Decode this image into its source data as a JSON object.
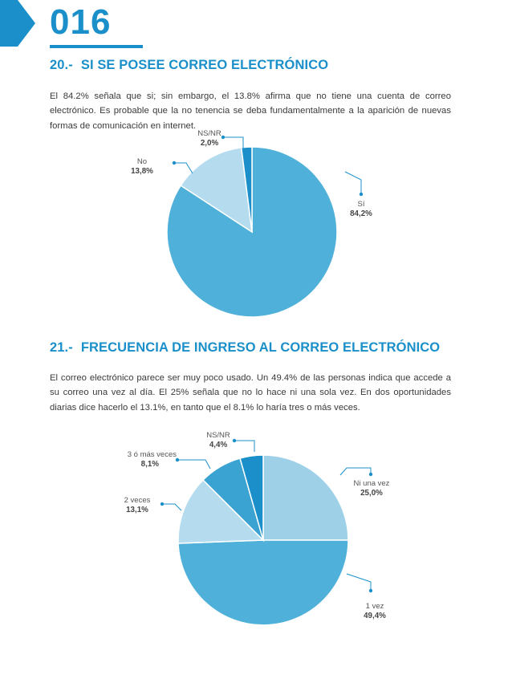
{
  "page": {
    "number": "016"
  },
  "section20": {
    "number": "20.-",
    "title": "SI SE POSEE CORREO ELECTRÓNICO",
    "text": "El 84.2% señala que si; sin embargo, el 13.8% afirma que no tiene una cuenta de correo electrónico. Es probable que la no tenencia se deba fundamentalmente a la aparición de nuevas formas de comunicación en internet."
  },
  "section21": {
    "number": "21.-",
    "title": "FRECUENCIA DE INGRESO AL CORREO ELECTRÓNICO",
    "text": "El correo electrónico parece ser muy poco usado. Un 49.4% de las personas indica que accede a su correo una vez al día. El 25% señala que no lo hace ni una sola vez. En dos oportunidades diarias dice hacerlo el 13.1%, en tanto que el 8.1% lo haría tres o más veces."
  },
  "colors": {
    "accent": "#1a8fc9"
  },
  "chart_data": [
    {
      "type": "pie",
      "slices": [
        {
          "label": "Sí",
          "value_label": "84,2%",
          "value": 84.2,
          "color": "#4fb0d9"
        },
        {
          "label": "No",
          "value_label": "13,8%",
          "value": 13.8,
          "color": "#b5dcee"
        },
        {
          "label": "NS/NR",
          "value_label": "2,0%",
          "value": 2.0,
          "color": "#1a8fc9"
        }
      ]
    },
    {
      "type": "pie",
      "slices": [
        {
          "label": "Ni una vez",
          "value_label": "25,0%",
          "value": 25.0,
          "color": "#9ed1e8"
        },
        {
          "label": "1 vez",
          "value_label": "49,4%",
          "value": 49.4,
          "color": "#4fb0d9"
        },
        {
          "label": "2 veces",
          "value_label": "13,1%",
          "value": 13.1,
          "color": "#b5dcee"
        },
        {
          "label": "3 ó más veces",
          "value_label": "8,1%",
          "value": 8.1,
          "color": "#3aa3d2"
        },
        {
          "label": "NS/NR",
          "value_label": "4,4%",
          "value": 4.4,
          "color": "#1a8fc9"
        }
      ]
    }
  ]
}
